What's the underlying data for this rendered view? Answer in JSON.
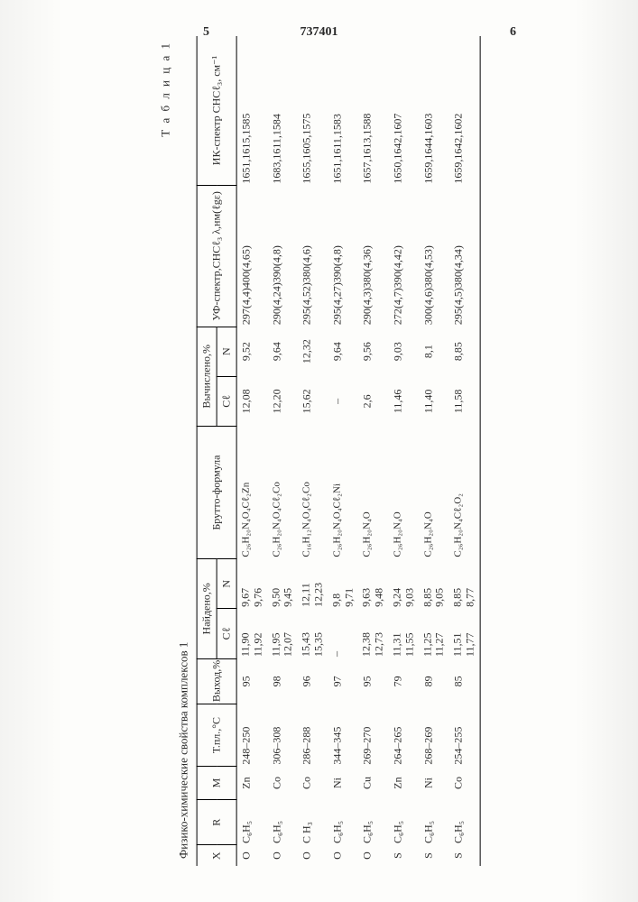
{
  "page": {
    "left_num": "5",
    "center_num": "737401",
    "right_num": "6"
  },
  "table": {
    "caption": "Т а б л и ц а 1",
    "title": "Физико-химические свойства комплексов 1",
    "headers": {
      "X": "X",
      "R": "R",
      "M": "M",
      "Tpl": "Т.пл.,°С",
      "Yield": "Выход,%",
      "Found": "Найдено,%",
      "Found_Cl": "Cℓ",
      "Found_N": "N",
      "Formula": "Брутто-формула",
      "Calc": "Вычислено,%",
      "Calc_Cl": "Cℓ",
      "Calc_N": "N",
      "UV": "УФ-спектр,CHCℓ₃ λ,нм(ℓgε)",
      "IR": "ИК-спектр CHCℓ₃, см⁻¹"
    },
    "col_widths": [
      "2.5%",
      "5.5%",
      "4%",
      "7.5%",
      "5.5%",
      "6%",
      "6%",
      "16%",
      "6%",
      "6%",
      "17%",
      "18%"
    ],
    "rows": [
      {
        "X": "O",
        "R": "C₆H₅",
        "M": "Zn",
        "Tpl": "248–250",
        "Yield": "95",
        "FCl": [
          "11,90",
          "11,92"
        ],
        "FN": [
          "9,67",
          "9,76"
        ],
        "Formula": "C₂₆H₂₀N₄O₄Cℓ₂Zn",
        "CCl": "12,08",
        "CN": "9,52",
        "UV": "297(4,4)400(4,65)",
        "IR": "1651,1615,1585"
      },
      {
        "X": "O",
        "R": "C₆H₅",
        "M": "Co",
        "Tpl": "306–308",
        "Yield": "98",
        "FCl": [
          "11,95",
          "12,07"
        ],
        "FN": [
          "9,50",
          "9,45"
        ],
        "Formula": "C₂₆H₂₀N₄O₄Cℓ₂Co",
        "CCl": "12,20",
        "CN": "9,64",
        "UV": "290(4,24)390(4,8)",
        "IR": "1683,1611,1584"
      },
      {
        "X": "O",
        "R": "C H₃",
        "M": "Co",
        "Tpl": "286–288",
        "Yield": "96",
        "FCl": [
          "15,43",
          "15,35"
        ],
        "FN": [
          "12,11",
          "12,23"
        ],
        "Formula": "C₁₆H₁₂N₄O₄Cℓ₂Co",
        "CCl": "15,62",
        "CN": "12,32",
        "UV": "295(4,52)380(4,6)",
        "IR": "1655,1605,1575"
      },
      {
        "X": "O",
        "R": "C₆H₅",
        "M": "Ni",
        "Tpl": "344–345",
        "Yield": "97",
        "FCl": [
          "–",
          ""
        ],
        "FN": [
          "9,8",
          "9,71"
        ],
        "Formula": "C₂₆H₂₀N₄O₄Cℓ₂Ni",
        "CCl": "–",
        "CN": "9,64",
        "UV": "295(4,27)390(4,8)",
        "IR": "1651,1611,1583"
      },
      {
        "X": "O",
        "R": "C₆H₅",
        "M": "Cu",
        "Tpl": "269–270",
        "Yield": "95",
        "FCl": [
          "12,38",
          "12,73"
        ],
        "FN": [
          "9,63",
          "9,48"
        ],
        "Formula": "C₂₆H₂₀N₄O",
        "CCl": "2,6",
        "CN": "9,56",
        "UV": "290(4,3)380(4,36)",
        "IR": "1657,1613,1588"
      },
      {
        "X": "S",
        "R": "C₆H₅",
        "M": "Zn",
        "Tpl": "264–265",
        "Yield": "79",
        "FCl": [
          "11,31",
          "11,55"
        ],
        "FN": [
          "9,24",
          "9,03"
        ],
        "Formula": "C₂₆H₂₀N₄O",
        "CCl": "11,46",
        "CN": "9,03",
        "UV": "272(4,7)390(4,42)",
        "IR": "1650,1642,1607"
      },
      {
        "X": "S",
        "R": "C₆H₅",
        "M": "Ni",
        "Tpl": "268–269",
        "Yield": "89",
        "FCl": [
          "11,25",
          "11,27"
        ],
        "FN": [
          "8,85",
          "9,05"
        ],
        "Formula": "C₂₆H₂₀N₄O",
        "CCl": "11,40",
        "CN": "8,1",
        "UV": "300(4,6)380(4,53)",
        "IR": "1659,1644,1603"
      },
      {
        "X": "S",
        "R": "C₆H₅",
        "M": "Co",
        "Tpl": "254–255",
        "Yield": "85",
        "FCl": [
          "11,51",
          "11,77"
        ],
        "FN": [
          "8,85",
          "8,77"
        ],
        "Formula": "C₂₆H₂₀N₄Cℓ₂O₂",
        "CCl": "11,58",
        "CN": "8,85",
        "UV": "295(4,5)380(4,34)",
        "IR": "1659,1642,1602"
      }
    ]
  },
  "style": {
    "bg": "#fdfdfb",
    "text": "#2a2a2a",
    "rule": "#000"
  }
}
